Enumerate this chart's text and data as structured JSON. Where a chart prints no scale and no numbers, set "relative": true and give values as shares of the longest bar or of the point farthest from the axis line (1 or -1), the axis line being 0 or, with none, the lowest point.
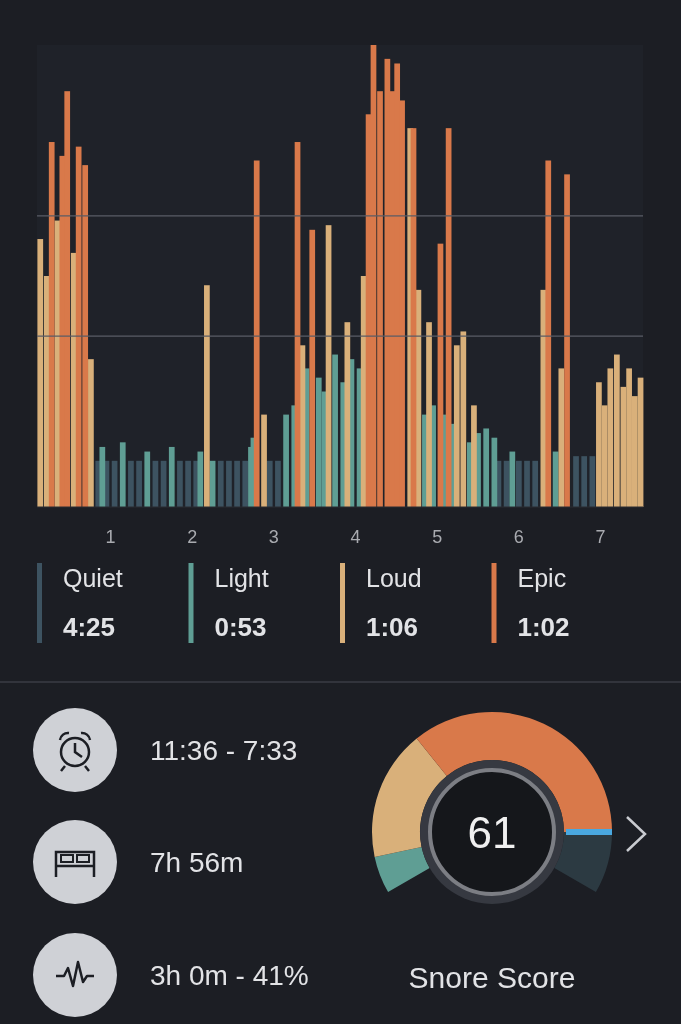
{
  "chart_data": [
    {
      "type": "bar",
      "relative": true,
      "xlim": [
        0.1,
        7.52
      ],
      "xticks": [
        1,
        2,
        3,
        4,
        5,
        6,
        7
      ],
      "legend": "bottom",
      "grid": false,
      "ref_lines": [
        {
          "axis": "y",
          "value": 0.63,
          "color": "#5a5d66"
        },
        {
          "axis": "y",
          "value": 0.37,
          "color": "#5a5d66"
        }
      ],
      "series": [
        {
          "name": "Quiet",
          "color": "#3d5361",
          "x": [
            0.85,
            0.95,
            1.05,
            1.25,
            1.35,
            1.55,
            1.65,
            1.85,
            1.95,
            2.05,
            2.35,
            2.45,
            2.55,
            2.65,
            2.95,
            3.05,
            5.75,
            5.85,
            6.0,
            6.1,
            6.2,
            6.7,
            6.8,
            6.9
          ],
          "values": [
            0.1,
            0.1,
            0.1,
            0.1,
            0.1,
            0.1,
            0.1,
            0.1,
            0.1,
            0.1,
            0.1,
            0.1,
            0.1,
            0.1,
            0.1,
            0.1,
            0.1,
            0.1,
            0.1,
            0.1,
            0.1,
            0.11,
            0.11,
            0.11
          ]
        },
        {
          "name": "Light",
          "color": "#5f9e94",
          "x": [
            0.9,
            1.15,
            1.45,
            1.75,
            2.1,
            2.25,
            2.72,
            2.75,
            3.15,
            3.25,
            3.4,
            3.55,
            3.62,
            3.75,
            3.85,
            3.95,
            4.05,
            4.85,
            4.95,
            5.1,
            5.2,
            5.4,
            5.5,
            5.6,
            5.7,
            5.92,
            6.45
          ],
          "values": [
            0.13,
            0.14,
            0.12,
            0.13,
            0.12,
            0.1,
            0.13,
            0.15,
            0.2,
            0.22,
            0.3,
            0.28,
            0.25,
            0.33,
            0.27,
            0.32,
            0.3,
            0.2,
            0.22,
            0.2,
            0.18,
            0.14,
            0.16,
            0.17,
            0.15,
            0.12,
            0.12
          ]
        },
        {
          "name": "Loud",
          "color": "#d9b07a",
          "x": [
            0.14,
            0.22,
            0.35,
            0.55,
            0.76,
            2.18,
            2.88,
            3.35,
            3.67,
            3.9,
            4.1,
            4.67,
            4.77,
            4.9,
            5.24,
            5.32,
            5.45,
            6.3,
            6.52,
            6.98,
            7.05,
            7.12,
            7.2,
            7.28,
            7.35,
            7.42,
            7.49
          ],
          "values": [
            0.58,
            0.5,
            0.62,
            0.55,
            0.32,
            0.48,
            0.2,
            0.35,
            0.61,
            0.4,
            0.5,
            0.82,
            0.47,
            0.4,
            0.35,
            0.38,
            0.22,
            0.47,
            0.3,
            0.27,
            0.22,
            0.3,
            0.33,
            0.26,
            0.3,
            0.24,
            0.28
          ]
        },
        {
          "name": "Epic",
          "color": "#d9794a",
          "x": [
            0.28,
            0.41,
            0.47,
            0.61,
            0.69,
            2.79,
            3.29,
            3.47,
            4.16,
            4.22,
            4.3,
            4.39,
            4.45,
            4.51,
            4.57,
            4.71,
            5.04,
            5.14,
            6.36,
            6.59
          ],
          "values": [
            0.79,
            0.76,
            0.9,
            0.78,
            0.74,
            0.75,
            0.79,
            0.6,
            0.85,
            1,
            0.9,
            0.97,
            0.9,
            0.96,
            0.88,
            0.82,
            0.57,
            0.82,
            0.75,
            0.72
          ]
        }
      ],
      "annotations": [
        "4:25",
        "0:53",
        "1:06",
        "1:02"
      ]
    },
    {
      "type": "donut",
      "title": "Snore Score",
      "categories": [
        null,
        null,
        null,
        null
      ],
      "values": [
        7.5,
        26.3,
        53.7,
        12.5
      ],
      "colors": [
        "#5f9e94",
        "#d9b07a",
        "#d9794a",
        "#2c3a42"
      ],
      "annotations": [
        "61"
      ]
    },
    {
      "type": "other",
      "annotations": [
        "11:36 - 7:33",
        "7h 56m",
        "3h 0m - 41%"
      ]
    }
  ]
}
